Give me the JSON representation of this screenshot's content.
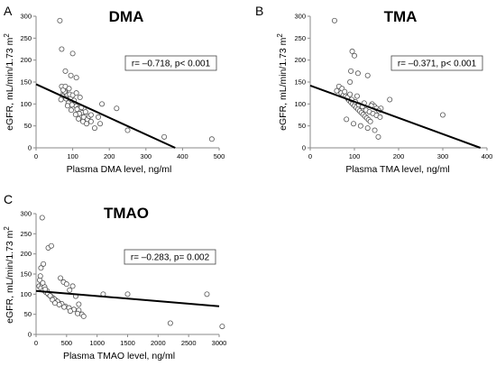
{
  "chart_data": [
    {
      "panel": "A",
      "type": "scatter",
      "title": "DMA",
      "xlabel": "Plasma DMA level, ng/ml",
      "ylabel": "eGFR, mL/min/1.73 m",
      "ylabel_sup": "2",
      "xlim": [
        0,
        500
      ],
      "ylim": [
        0,
        300
      ],
      "xticks": [
        0,
        100,
        200,
        300,
        400,
        500
      ],
      "yticks": [
        0,
        50,
        100,
        150,
        200,
        250,
        300
      ],
      "annotation": "r= –0.718, p< 0.001",
      "regression": {
        "x": [
          0,
          380
        ],
        "y": [
          145,
          0
        ]
      },
      "points": {
        "x": [
          65,
          70,
          80,
          100,
          95,
          110,
          130,
          160,
          175,
          220,
          250,
          350,
          480,
          70,
          75,
          80,
          85,
          90,
          95,
          100,
          105,
          110,
          115,
          120,
          125,
          130,
          140,
          150,
          72,
          78,
          82,
          88,
          92,
          98,
          104,
          112,
          118,
          124,
          135,
          145,
          68,
          74,
          86,
          96,
          108,
          116,
          128,
          138,
          150,
          170,
          180,
          80,
          90,
          100,
          110,
          120
        ],
        "y": [
          290,
          225,
          175,
          215,
          165,
          160,
          90,
          45,
          55,
          90,
          40,
          25,
          20,
          140,
          125,
          130,
          120,
          110,
          115,
          105,
          100,
          95,
          90,
          85,
          80,
          70,
          65,
          60,
          118,
          128,
          112,
          102,
          122,
          98,
          108,
          88,
          78,
          92,
          82,
          72,
          110,
          132,
          96,
          86,
          76,
          66,
          60,
          55,
          75,
          70,
          100,
          140,
          135,
          120,
          125,
          115
        ]
      }
    },
    {
      "panel": "B",
      "type": "scatter",
      "title": "TMA",
      "xlabel": "Plasma TMA level, ng/ml",
      "ylabel": "eGFR, mL/min/1.73 m",
      "ylabel_sup": "2",
      "xlim": [
        0,
        400
      ],
      "ylim": [
        0,
        300
      ],
      "xticks": [
        0,
        100,
        200,
        300,
        400
      ],
      "yticks": [
        0,
        50,
        100,
        150,
        200,
        250,
        300
      ],
      "annotation": "r= –0.371, p< 0.001",
      "regression": {
        "x": [
          0,
          385
        ],
        "y": [
          142,
          0
        ]
      },
      "points": {
        "x": [
          55,
          95,
          100,
          92,
          108,
          90,
          130,
          160,
          180,
          300,
          60,
          70,
          75,
          80,
          85,
          88,
          92,
          96,
          100,
          104,
          108,
          112,
          116,
          120,
          124,
          128,
          132,
          136,
          140,
          145,
          150,
          155,
          65,
          72,
          78,
          84,
          94,
          102,
          110,
          118,
          126,
          134,
          142,
          150,
          158,
          82,
          98,
          114,
          130,
          146,
          90,
          106,
          122,
          138,
          154
        ],
        "y": [
          290,
          220,
          210,
          175,
          170,
          150,
          165,
          90,
          110,
          75,
          130,
          125,
          120,
          118,
          112,
          108,
          104,
          100,
          96,
          92,
          88,
          84,
          80,
          76,
          72,
          68,
          64,
          60,
          100,
          95,
          90,
          85,
          140,
          135,
          128,
          115,
          110,
          105,
          98,
          94,
          86,
          82,
          78,
          74,
          70,
          65,
          55,
          50,
          45,
          40,
          122,
          118,
          102,
          96,
          25
        ]
      }
    },
    {
      "panel": "C",
      "type": "scatter",
      "title": "TMAO",
      "xlabel": "Plasma TMAO level, ng/ml",
      "ylabel": "eGFR, mL/min/1.73 m",
      "ylabel_sup": "2",
      "xlim": [
        0,
        3000
      ],
      "ylim": [
        0,
        300
      ],
      "xticks": [
        0,
        500,
        1000,
        1500,
        2000,
        2500,
        3000
      ],
      "yticks": [
        0,
        50,
        100,
        150,
        200,
        250,
        300
      ],
      "annotation": "r= –0.283, p= 0.002",
      "regression": {
        "x": [
          0,
          3000
        ],
        "y": [
          108,
          70
        ]
      },
      "points": {
        "x": [
          100,
          200,
          250,
          120,
          80,
          1100,
          1500,
          2200,
          2800,
          3050,
          700,
          50,
          80,
          120,
          160,
          200,
          240,
          280,
          320,
          360,
          400,
          450,
          500,
          550,
          600,
          650,
          700,
          750,
          60,
          100,
          140,
          180,
          220,
          260,
          300,
          350,
          420,
          480,
          540,
          620,
          70,
          110,
          150,
          190,
          230,
          270,
          310,
          380,
          460,
          560,
          680,
          780
        ],
        "y": [
          290,
          215,
          220,
          175,
          165,
          100,
          100,
          28,
          100,
          20,
          75,
          120,
          115,
          110,
          105,
          100,
          95,
          90,
          85,
          80,
          140,
          130,
          125,
          110,
          120,
          95,
          60,
          50,
          135,
          125,
          118,
          108,
          98,
          92,
          88,
          82,
          76,
          70,
          66,
          62,
          145,
          128,
          112,
          102,
          96,
          86,
          78,
          74,
          68,
          58,
          52,
          45
        ]
      }
    }
  ]
}
